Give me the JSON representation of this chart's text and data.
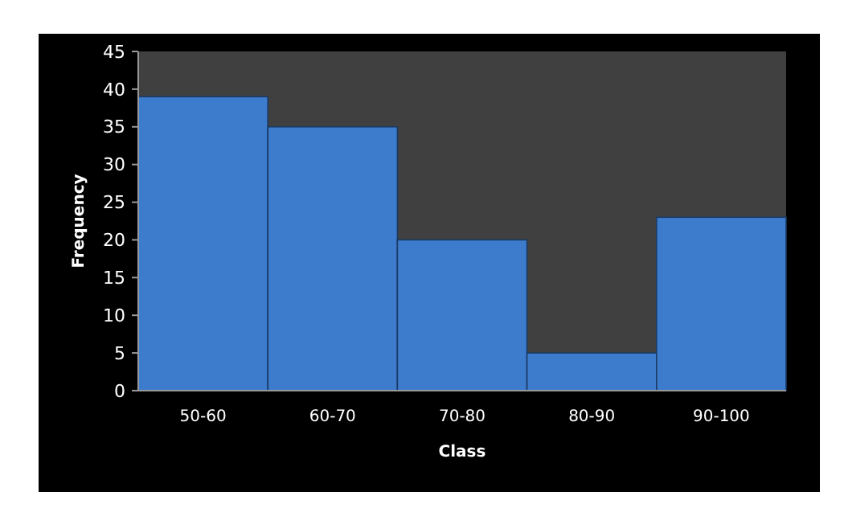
{
  "chart_data": {
    "type": "bar",
    "xlabel": "Class",
    "ylabel": "Frequency",
    "categories": [
      "50-60",
      "60-70",
      "70-80",
      "80-90",
      "90-100"
    ],
    "values": [
      39,
      35,
      20,
      5,
      23
    ],
    "color": "#3d7ccc",
    "ylim": [
      0,
      45
    ],
    "yticks": [
      0,
      5,
      10,
      15,
      20,
      25,
      30,
      35,
      40,
      45
    ],
    "grid": false
  }
}
